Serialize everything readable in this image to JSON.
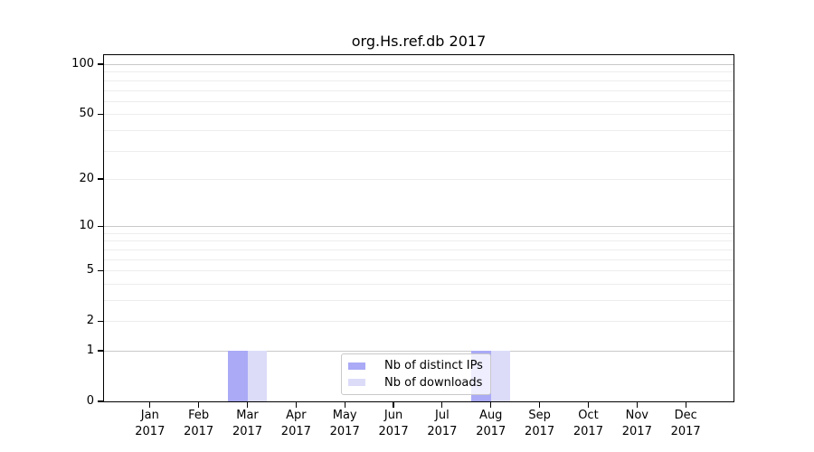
{
  "chart_data": {
    "type": "bar",
    "title": "org.Hs.ref.db 2017",
    "categories": [
      "Jan 2017",
      "Feb 2017",
      "Mar 2017",
      "Apr 2017",
      "May 2017",
      "Jun 2017",
      "Jul 2017",
      "Aug 2017",
      "Sep 2017",
      "Oct 2017",
      "Nov 2017",
      "Dec 2017"
    ],
    "series": [
      {
        "name": "Nb of distinct IPs",
        "color": "#aaaaf7",
        "values": [
          0,
          0,
          1,
          0,
          0,
          0,
          0,
          1,
          0,
          0,
          0,
          0
        ]
      },
      {
        "name": "Nb of downloads",
        "color": "#dcdcf9",
        "values": [
          0,
          0,
          1,
          0,
          0,
          0,
          0,
          1,
          0,
          0,
          0,
          0
        ]
      }
    ],
    "xlabel": "",
    "ylabel": "",
    "yscale": "log1p",
    "ylim": [
      0,
      113
    ],
    "y_tick_values": [
      0,
      1,
      2,
      5,
      10,
      20,
      50,
      100
    ],
    "y_tick_labels": [
      "0",
      "1",
      "2",
      "5",
      "10",
      "20",
      "50",
      "100"
    ],
    "y_major_gridlines": [
      1,
      10,
      100
    ],
    "y_minor_gridlines": [
      2,
      3,
      4,
      5,
      6,
      7,
      8,
      9,
      20,
      30,
      40,
      50,
      60,
      70,
      80,
      90
    ],
    "grid": true,
    "legend": {
      "position": "lower-center",
      "entries": [
        "Nb of distinct IPs",
        "Nb of downloads"
      ]
    },
    "colors": {
      "major_grid": "#c9c9c9",
      "minor_grid": "#ededed",
      "spine": "#000000",
      "text": "#000000"
    }
  }
}
